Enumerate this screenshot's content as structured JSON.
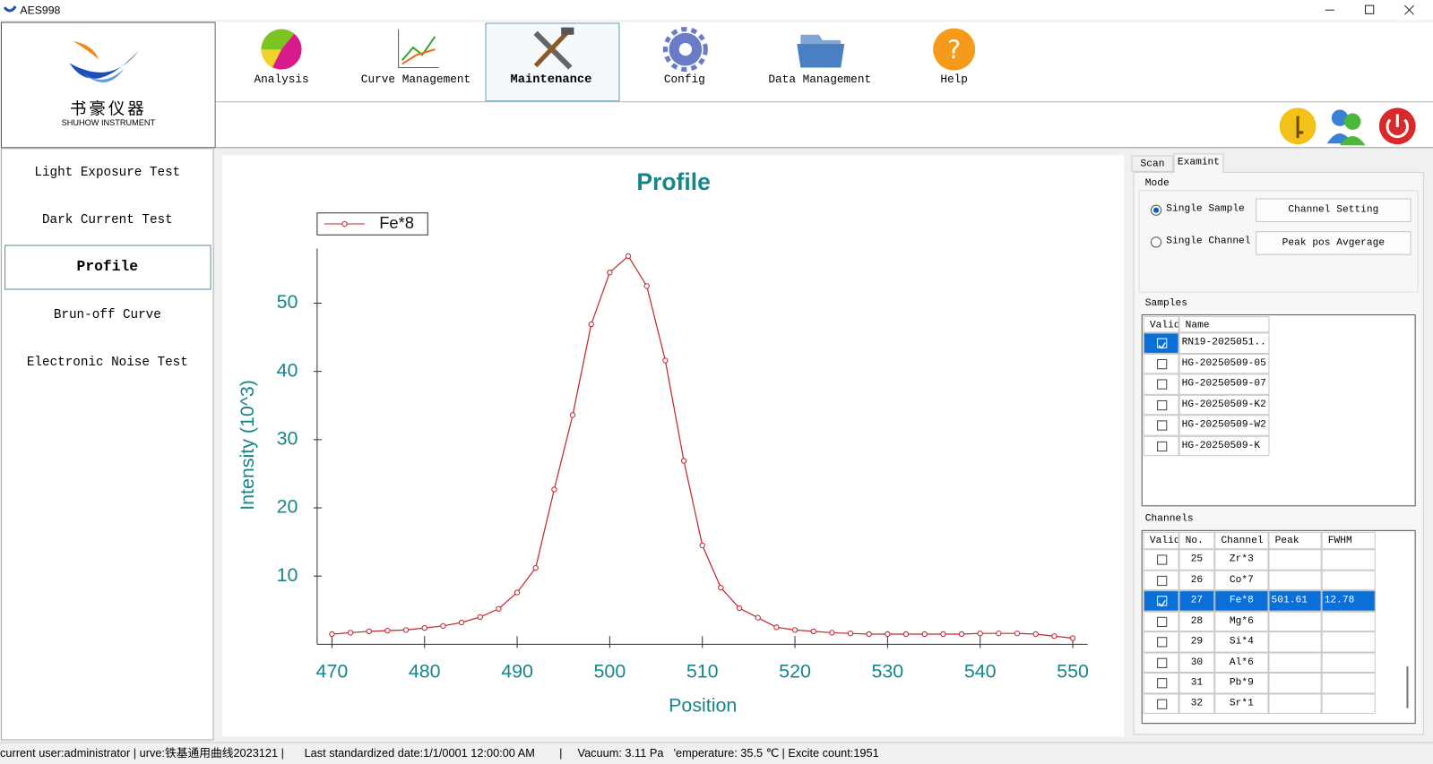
{
  "window": {
    "title": "AES998"
  },
  "logo": {
    "brand_cn": "书豪仪器",
    "brand_en": "SHUHOW INSTRUMENT"
  },
  "toolbar": {
    "items": [
      "Analysis",
      "Curve Management",
      "Maintenance",
      "Config",
      "Data Management",
      "Help"
    ],
    "selected": 2
  },
  "sidebar": {
    "items": [
      "Light Exposure Test",
      "Dark Current Test",
      "Profile",
      "Brun-off Curve",
      "Electronic Noise Test"
    ],
    "selected": 2
  },
  "chart_data": {
    "type": "line",
    "title": "Profile",
    "x_label": "Position",
    "y_label": "Intensity (10^3)",
    "x": [
      470,
      472,
      474,
      476,
      478,
      480,
      482,
      484,
      486,
      488,
      490,
      492,
      494,
      496,
      498,
      500,
      502,
      504,
      506,
      508,
      510,
      512,
      514,
      516,
      518,
      520,
      522,
      524,
      526,
      528,
      530,
      532,
      534,
      536,
      538,
      540,
      542,
      544,
      546,
      548,
      550
    ],
    "series": [
      {
        "name": "Fe*8",
        "color": "#c0282d",
        "values": [
          1.5,
          1.7,
          1.9,
          2.0,
          2.1,
          2.4,
          2.7,
          3.2,
          4.0,
          5.2,
          7.6,
          11.2,
          22.7,
          33.6,
          46.9,
          54.5,
          56.9,
          52.5,
          41.6,
          26.9,
          14.5,
          8.3,
          5.3,
          3.9,
          2.5,
          2.1,
          1.9,
          1.7,
          1.6,
          1.5,
          1.5,
          1.5,
          1.5,
          1.5,
          1.5,
          1.6,
          1.6,
          1.6,
          1.5,
          1.2,
          0.9
        ]
      }
    ],
    "xlim": [
      468.4,
      551.6
    ],
    "ylim": [
      0,
      58
    ],
    "xticks": [
      470,
      480,
      490,
      500,
      510,
      520,
      530,
      540,
      550
    ],
    "yticks": [
      10,
      20,
      30,
      40,
      50
    ],
    "legend": "upper left",
    "axis_color": "#17868a"
  },
  "panel": {
    "tabs": [
      "Scan",
      "Examint"
    ],
    "selected_tab": 1,
    "mode": {
      "label": "Mode",
      "options": [
        "Single Sample",
        "Single Channel"
      ],
      "checked": 0,
      "buttons": [
        "Channel Setting",
        "Peak pos Avgerage"
      ]
    },
    "samples": {
      "label": "Samples",
      "headers": [
        "Valid",
        "Name"
      ],
      "rows": [
        {
          "name": "RN19-2025051...",
          "valid": true,
          "selected": true
        },
        {
          "name": "HG-20250509-05",
          "valid": false
        },
        {
          "name": "HG-20250509-07",
          "valid": false
        },
        {
          "name": "HG-20250509-K2",
          "valid": false
        },
        {
          "name": "HG-20250509-W2",
          "valid": false
        },
        {
          "name": "HG-20250509-K",
          "valid": false
        }
      ]
    },
    "channels": {
      "label": "Channels",
      "headers": [
        "Valid",
        "No.",
        "Channel",
        "Peak",
        "FWHM"
      ],
      "rows": [
        {
          "no": 25,
          "channel": "Zr*3",
          "valid": false
        },
        {
          "no": 26,
          "channel": "Co*7",
          "valid": false
        },
        {
          "no": 27,
          "channel": "Fe*8",
          "valid": true,
          "selected": true,
          "peak": "501.61",
          "fwhm": "12.78"
        },
        {
          "no": 28,
          "channel": "Mg*6",
          "valid": false
        },
        {
          "no": 29,
          "channel": "Si*4",
          "valid": false
        },
        {
          "no": 30,
          "channel": "Al*6",
          "valid": false
        },
        {
          "no": 31,
          "channel": "Pb*9",
          "valid": false
        },
        {
          "no": 32,
          "channel": "Sr*1",
          "valid": false
        }
      ]
    }
  },
  "status_bar": {
    "segments": [
      "current user:administrator | urve:铁基通用曲线2023121 |",
      "Last standardized date:1/1/0001 12:00:00 AM",
      "|",
      "Vacuum: 3.11 Pa",
      "'emperature: 35.5 ℃ | Excite count:1951"
    ]
  }
}
